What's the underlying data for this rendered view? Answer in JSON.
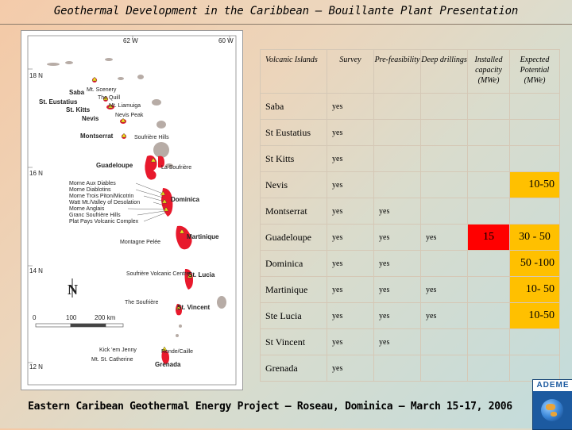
{
  "title": "Geothermal Development in the Caribbean – Bouillante Plant Presentation",
  "map": {
    "longitudes": [
      "62 W",
      "60 W"
    ],
    "latitudes": [
      "18 N",
      "16 N",
      "14 N",
      "12 N"
    ],
    "islands": [
      "Saba",
      "St. Eustatius",
      "St. Kitts",
      "Nevis",
      "Montserrat",
      "Guadeloupe",
      "Dominica",
      "Martinique",
      "St. Lucia",
      "St. Vincent",
      "Grenada"
    ],
    "volcanoes": [
      "Mt. Scenery",
      "The Quill",
      "Mt. Liamuiga",
      "Nevis Peak",
      "Soufrière Hills",
      "La Soufrière",
      "Morne Aux Diables",
      "Morne Diablotins",
      "Morne Trois Piton/Micotrin",
      "Watt Mt./Valley of Desolation",
      "Morne Anglais",
      "Granc Soufrière Hills",
      "Plat Pays Volcanic Complex",
      "Montagne Pelée",
      "Soufrière Volcanic Centre",
      "The Soufrière",
      "Kick 'em Jenny",
      "Mt. St. Catherine",
      "Ronde/Caille"
    ],
    "north_label": "N",
    "scale_labels": [
      "0",
      "100",
      "200 km"
    ]
  },
  "table": {
    "headers": {
      "island": "Volcanic Islands",
      "survey": "Survey",
      "prefeasibility": "Pre-feasibility",
      "deep": "Deep drillings",
      "installed": "Installed capacity (MWe)",
      "expected": "Expected Potential (MWe)"
    },
    "rows": [
      {
        "island": "Saba",
        "survey": "yes",
        "pre": "",
        "deep": "",
        "installed": "",
        "expected": ""
      },
      {
        "island": "St Eustatius",
        "survey": "yes",
        "pre": "",
        "deep": "",
        "installed": "",
        "expected": ""
      },
      {
        "island": "St Kitts",
        "survey": "yes",
        "pre": "",
        "deep": "",
        "installed": "",
        "expected": ""
      },
      {
        "island": "Nevis",
        "survey": "yes",
        "pre": "",
        "deep": "",
        "installed": "",
        "expected": "10-50"
      },
      {
        "island": "Montserrat",
        "survey": "yes",
        "pre": "yes",
        "deep": "",
        "installed": "",
        "expected": ""
      },
      {
        "island": "Guadeloupe",
        "survey": "yes",
        "pre": "yes",
        "deep": "yes",
        "installed": "15",
        "expected": "30 - 50"
      },
      {
        "island": "Dominica",
        "survey": "yes",
        "pre": "yes",
        "deep": "",
        "installed": "",
        "expected": "50 -100"
      },
      {
        "island": "Martinique",
        "survey": "yes",
        "pre": "yes",
        "deep": "yes",
        "installed": "",
        "expected": "10- 50"
      },
      {
        "island": "Ste Lucia",
        "survey": "yes",
        "pre": "yes",
        "deep": "yes",
        "installed": "",
        "expected": "10-50"
      },
      {
        "island": "St Vincent",
        "survey": "yes",
        "pre": "yes",
        "deep": "",
        "installed": "",
        "expected": ""
      },
      {
        "island": "Grenada",
        "survey": "yes",
        "pre": "",
        "deep": "",
        "installed": "",
        "expected": ""
      }
    ]
  },
  "footer": "Eastern Caribean Geothermal Energy Project – Roseau, Dominica – March 15-17, 2006",
  "logo": "ADEME",
  "colors": {
    "highlight": "#ffc000",
    "installed": "#ff0000",
    "island": "#e8192c",
    "land": "#b7aca6"
  }
}
